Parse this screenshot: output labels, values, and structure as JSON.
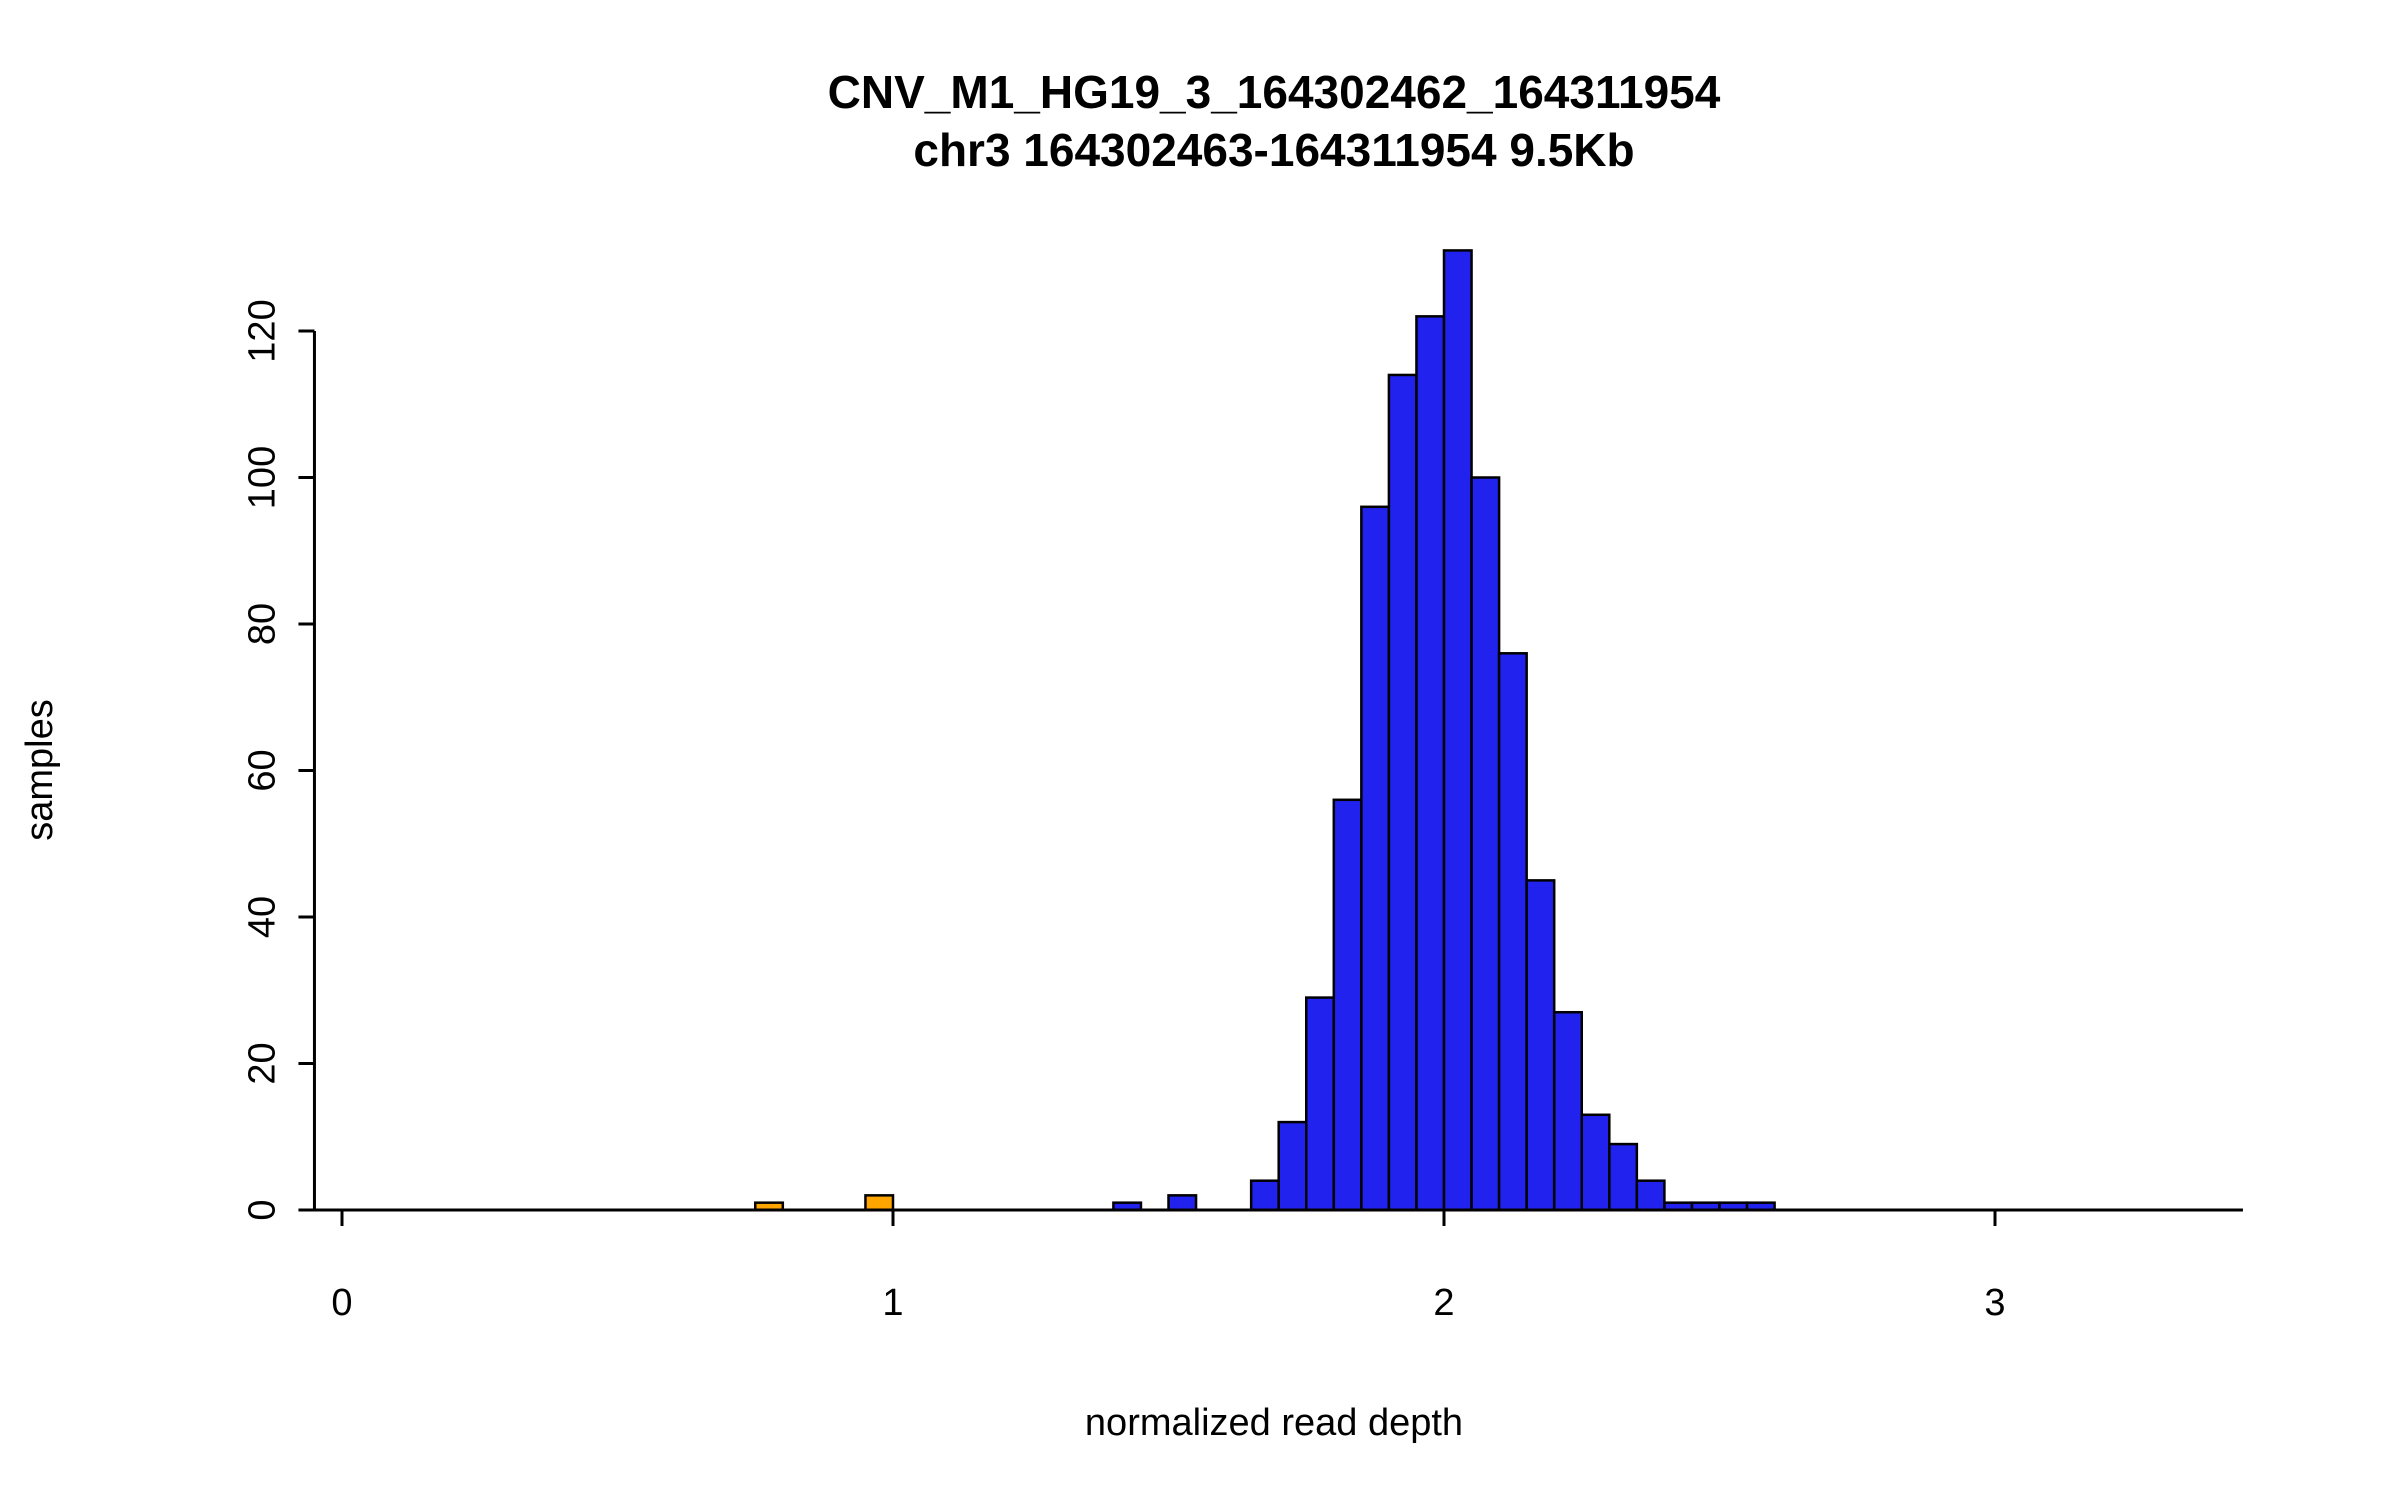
{
  "chart_data": {
    "type": "bar",
    "subtype": "histogram",
    "title": "CNV_M1_HG19_3_164302462_164311954",
    "subtitle": "chr3 164302463-164311954 9.5Kb",
    "xlabel": "normalized read depth",
    "ylabel": "samples",
    "x_ticks": [
      0,
      1,
      2,
      3
    ],
    "y_ticks": [
      0,
      20,
      40,
      60,
      80,
      100,
      120
    ],
    "xlim": [
      -0.05,
      3.45
    ],
    "ylim": [
      0,
      131
    ],
    "bin_width": 0.05,
    "bar_color": "#2222EE",
    "highlight_color": "#FFA500",
    "border_color": "#000000",
    "grid": false,
    "legend": "none",
    "bins": [
      {
        "x": 0.75,
        "count": 1,
        "highlight": true
      },
      {
        "x": 0.95,
        "count": 2,
        "highlight": true
      },
      {
        "x": 1.4,
        "count": 1
      },
      {
        "x": 1.5,
        "count": 2
      },
      {
        "x": 1.65,
        "count": 4
      },
      {
        "x": 1.7,
        "count": 12
      },
      {
        "x": 1.75,
        "count": 29
      },
      {
        "x": 1.8,
        "count": 56
      },
      {
        "x": 1.85,
        "count": 96
      },
      {
        "x": 1.9,
        "count": 114
      },
      {
        "x": 1.95,
        "count": 122
      },
      {
        "x": 2.0,
        "count": 131
      },
      {
        "x": 2.05,
        "count": 100
      },
      {
        "x": 2.1,
        "count": 76
      },
      {
        "x": 2.15,
        "count": 45
      },
      {
        "x": 2.2,
        "count": 27
      },
      {
        "x": 2.25,
        "count": 13
      },
      {
        "x": 2.3,
        "count": 9
      },
      {
        "x": 2.35,
        "count": 4
      },
      {
        "x": 2.4,
        "count": 1
      },
      {
        "x": 2.45,
        "count": 1
      },
      {
        "x": 2.5,
        "count": 1
      },
      {
        "x": 2.55,
        "count": 1
      }
    ]
  }
}
